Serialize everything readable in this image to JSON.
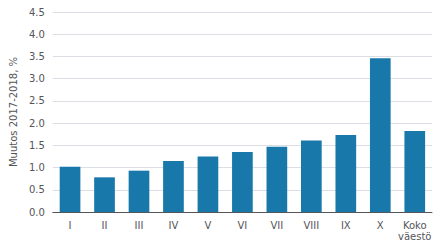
{
  "chart_data": {
    "type": "bar",
    "categories": [
      "I",
      "II",
      "III",
      "IV",
      "V",
      "VI",
      "VII",
      "VIII",
      "IX",
      "X",
      "Koko\nväestö"
    ],
    "values": [
      1.02,
      0.78,
      0.93,
      1.15,
      1.25,
      1.35,
      1.47,
      1.61,
      1.73,
      3.46,
      1.82
    ],
    "color": "#1878aa",
    "ylabel": "Muutos 2017-2018, %",
    "ylim": [
      0.0,
      4.5
    ],
    "yticks": [
      {
        "value": 0,
        "label": "0.0"
      },
      0.5,
      {
        "value": 1,
        "label": "1.0"
      },
      1.5,
      {
        "value": 2,
        "label": "2.0"
      },
      2.5,
      {
        "value": 3,
        "label": "3.0"
      },
      3.5,
      {
        "value": 4,
        "label": "4.0"
      },
      4.5
    ],
    "grid": true
  }
}
